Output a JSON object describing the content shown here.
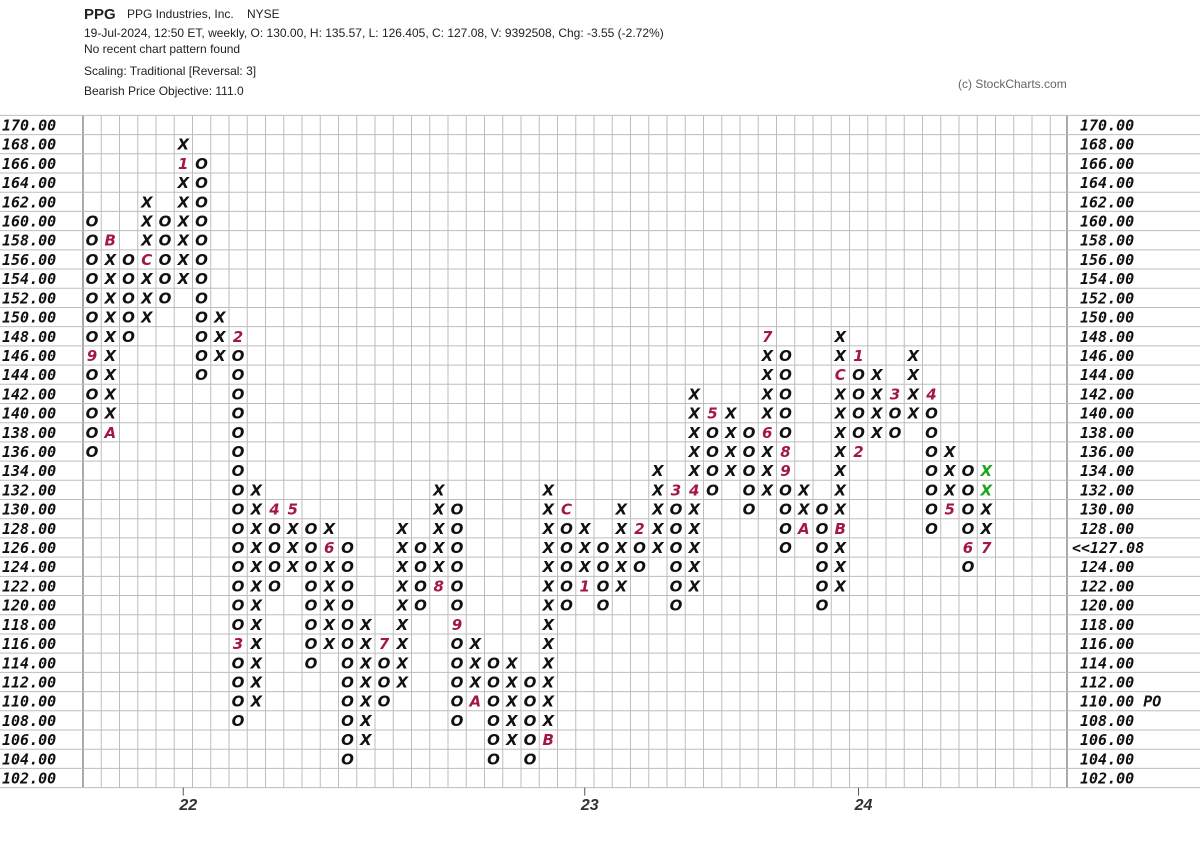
{
  "header": {
    "symbol": "PPG",
    "name": "PPG Industries, Inc.",
    "exchange": "NYSE",
    "info": "19-Jul-2024, 12:50 ET, weekly, O: 130.00, H: 135.57, L: 126.405, C: 127.08, V: 9392508, Chg: -3.55 (-2.72%)",
    "pattern": "No recent chart pattern found",
    "scaling": "Scaling: Traditional [Reversal: 3]",
    "objective": "Bearish Price Objective: 111.0",
    "watermark": "(c) StockCharts.com"
  },
  "chart_data": {
    "type": "point_and_figure",
    "ylim": [
      102,
      170
    ],
    "box_size": 2,
    "yticks": [
      {
        "value": 170,
        "label": "170.00"
      },
      {
        "value": 168,
        "label": "168.00"
      },
      {
        "value": 166,
        "label": "166.00"
      },
      {
        "value": 164,
        "label": "164.00"
      },
      {
        "value": 162,
        "label": "162.00"
      },
      {
        "value": 160,
        "label": "160.00"
      },
      {
        "value": 158,
        "label": "158.00"
      },
      {
        "value": 156,
        "label": "156.00"
      },
      {
        "value": 154,
        "label": "154.00"
      },
      {
        "value": 152,
        "label": "152.00"
      },
      {
        "value": 150,
        "label": "150.00"
      },
      {
        "value": 148,
        "label": "148.00"
      },
      {
        "value": 146,
        "label": "146.00"
      },
      {
        "value": 144,
        "label": "144.00"
      },
      {
        "value": 142,
        "label": "142.00"
      },
      {
        "value": 140,
        "label": "140.00"
      },
      {
        "value": 138,
        "label": "138.00"
      },
      {
        "value": 136,
        "label": "136.00"
      },
      {
        "value": 134,
        "label": "134.00"
      },
      {
        "value": 132,
        "label": "132.00"
      },
      {
        "value": 130,
        "label": "130.00"
      },
      {
        "value": 128,
        "label": "128.00"
      },
      {
        "value": 126,
        "label": "126.00"
      },
      {
        "value": 124,
        "label": "124.00"
      },
      {
        "value": 122,
        "label": "122.00"
      },
      {
        "value": 120,
        "label": "120.00"
      },
      {
        "value": 118,
        "label": "118.00"
      },
      {
        "value": 116,
        "label": "116.00"
      },
      {
        "value": 114,
        "label": "114.00"
      },
      {
        "value": 112,
        "label": "112.00"
      },
      {
        "value": 110,
        "label": "110.00"
      },
      {
        "value": 108,
        "label": "108.00"
      },
      {
        "value": 106,
        "label": "106.00"
      },
      {
        "value": 104,
        "label": "104.00"
      },
      {
        "value": 102,
        "label": "102.00"
      }
    ],
    "last_price": {
      "value": 127.08,
      "label": "<<127.08"
    },
    "price_objective": {
      "value": 110,
      "label": "110.00 PO"
    },
    "highlight_color": "#e60000",
    "month_color": "#a3164a",
    "box_color": "#111111",
    "x_labels": [
      {
        "column": 5,
        "label": "22"
      },
      {
        "column": 27,
        "label": "23"
      },
      {
        "column": 42,
        "label": "24"
      }
    ],
    "columns": [
      {
        "type": "O",
        "low": 136,
        "high": 160,
        "months": [
          {
            "value": 146,
            "label": "9"
          }
        ]
      },
      {
        "type": "X",
        "low": 138,
        "high": 158,
        "months": [
          {
            "value": 138,
            "label": "A"
          },
          {
            "value": 158,
            "label": "B"
          }
        ]
      },
      {
        "type": "O",
        "low": 148,
        "high": 156,
        "months": []
      },
      {
        "type": "X",
        "low": 150,
        "high": 162,
        "months": [
          {
            "value": 156,
            "label": "C"
          }
        ]
      },
      {
        "type": "O",
        "low": 152,
        "high": 160,
        "months": []
      },
      {
        "type": "X",
        "low": 154,
        "high": 168,
        "months": [
          {
            "value": 166,
            "label": "1"
          }
        ]
      },
      {
        "type": "O",
        "low": 144,
        "high": 166,
        "months": []
      },
      {
        "type": "X",
        "low": 146,
        "high": 150,
        "months": []
      },
      {
        "type": "O",
        "low": 108,
        "high": 148,
        "months": [
          {
            "value": 148,
            "label": "2"
          },
          {
            "value": 116,
            "label": "3"
          }
        ]
      },
      {
        "type": "X",
        "low": 110,
        "high": 132,
        "months": []
      },
      {
        "type": "O",
        "low": 122,
        "high": 130,
        "months": [
          {
            "value": 130,
            "label": "4"
          }
        ]
      },
      {
        "type": "X",
        "low": 124,
        "high": 130,
        "months": [
          {
            "value": 130,
            "label": "5"
          }
        ]
      },
      {
        "type": "O",
        "low": 114,
        "high": 128,
        "months": []
      },
      {
        "type": "X",
        "low": 116,
        "high": 128,
        "months": [
          {
            "value": 126,
            "label": "6"
          }
        ]
      },
      {
        "type": "O",
        "low": 104,
        "high": 126,
        "months": []
      },
      {
        "type": "X",
        "low": 106,
        "high": 118,
        "months": []
      },
      {
        "type": "O",
        "low": 110,
        "high": 116,
        "months": [
          {
            "value": 116,
            "label": "7"
          }
        ]
      },
      {
        "type": "X",
        "low": 112,
        "high": 128,
        "months": []
      },
      {
        "type": "O",
        "low": 120,
        "high": 126,
        "months": []
      },
      {
        "type": "X",
        "low": 122,
        "high": 132,
        "months": [
          {
            "value": 122,
            "label": "8"
          }
        ]
      },
      {
        "type": "O",
        "low": 108,
        "high": 130,
        "months": [
          {
            "value": 118,
            "label": "9"
          }
        ]
      },
      {
        "type": "X",
        "low": 110,
        "high": 116,
        "months": [
          {
            "value": 110,
            "label": "A"
          }
        ]
      },
      {
        "type": "O",
        "low": 104,
        "high": 114,
        "months": []
      },
      {
        "type": "X",
        "low": 106,
        "high": 114,
        "months": []
      },
      {
        "type": "O",
        "low": 104,
        "high": 112,
        "months": []
      },
      {
        "type": "X",
        "low": 106,
        "high": 132,
        "months": [
          {
            "value": 106,
            "label": "B"
          }
        ]
      },
      {
        "type": "O",
        "low": 120,
        "high": 130,
        "months": [
          {
            "value": 130,
            "label": "C"
          }
        ]
      },
      {
        "type": "X",
        "low": 122,
        "high": 128,
        "months": [
          {
            "value": 122,
            "label": "1"
          }
        ]
      },
      {
        "type": "O",
        "low": 120,
        "high": 126,
        "months": []
      },
      {
        "type": "X",
        "low": 122,
        "high": 130,
        "months": []
      },
      {
        "type": "O",
        "low": 124,
        "high": 128,
        "months": [
          {
            "value": 128,
            "label": "2"
          }
        ]
      },
      {
        "type": "X",
        "low": 126,
        "high": 134,
        "months": []
      },
      {
        "type": "O",
        "low": 120,
        "high": 132,
        "months": [
          {
            "value": 132,
            "label": "3"
          }
        ]
      },
      {
        "type": "X",
        "low": 122,
        "high": 142,
        "months": [
          {
            "value": 132,
            "label": "4"
          }
        ]
      },
      {
        "type": "O",
        "low": 132,
        "high": 140,
        "months": [
          {
            "value": 140,
            "label": "5"
          }
        ]
      },
      {
        "type": "X",
        "low": 134,
        "high": 140,
        "months": []
      },
      {
        "type": "O",
        "low": 130,
        "high": 138,
        "months": []
      },
      {
        "type": "X",
        "low": 132,
        "high": 148,
        "months": [
          {
            "value": 138,
            "label": "6"
          },
          {
            "value": 148,
            "label": "7"
          }
        ]
      },
      {
        "type": "O",
        "low": 126,
        "high": 146,
        "months": [
          {
            "value": 136,
            "label": "8"
          },
          {
            "value": 134,
            "label": "9"
          }
        ]
      },
      {
        "type": "X",
        "low": 128,
        "high": 132,
        "months": [
          {
            "value": 128,
            "label": "A"
          }
        ]
      },
      {
        "type": "O",
        "low": 120,
        "high": 130,
        "months": []
      },
      {
        "type": "X",
        "low": 122,
        "high": 148,
        "months": [
          {
            "value": 128,
            "label": "B"
          },
          {
            "value": 144,
            "label": "C"
          }
        ]
      },
      {
        "type": "O",
        "low": 136,
        "high": 146,
        "months": [
          {
            "value": 146,
            "label": "1"
          },
          {
            "value": 136,
            "label": "2"
          }
        ]
      },
      {
        "type": "X",
        "low": 138,
        "high": 144,
        "months": []
      },
      {
        "type": "O",
        "low": 138,
        "high": 142,
        "months": [
          {
            "value": 142,
            "label": "3"
          }
        ]
      },
      {
        "type": "X",
        "low": 140,
        "high": 146,
        "months": []
      },
      {
        "type": "O",
        "low": 128,
        "high": 142,
        "months": [
          {
            "value": 142,
            "label": "4"
          }
        ]
      },
      {
        "type": "X",
        "low": 130,
        "high": 136,
        "months": [
          {
            "value": 130,
            "label": "5"
          }
        ]
      },
      {
        "type": "O",
        "low": 124,
        "high": 134,
        "months": [
          {
            "value": 126,
            "label": "6"
          }
        ]
      },
      {
        "type": "X",
        "low": 126,
        "high": 134,
        "months": [
          {
            "value": 126,
            "label": "7"
          }
        ],
        "highlight": {
          "values": [
            132,
            134
          ],
          "color": "#1fa31f"
        }
      }
    ]
  }
}
